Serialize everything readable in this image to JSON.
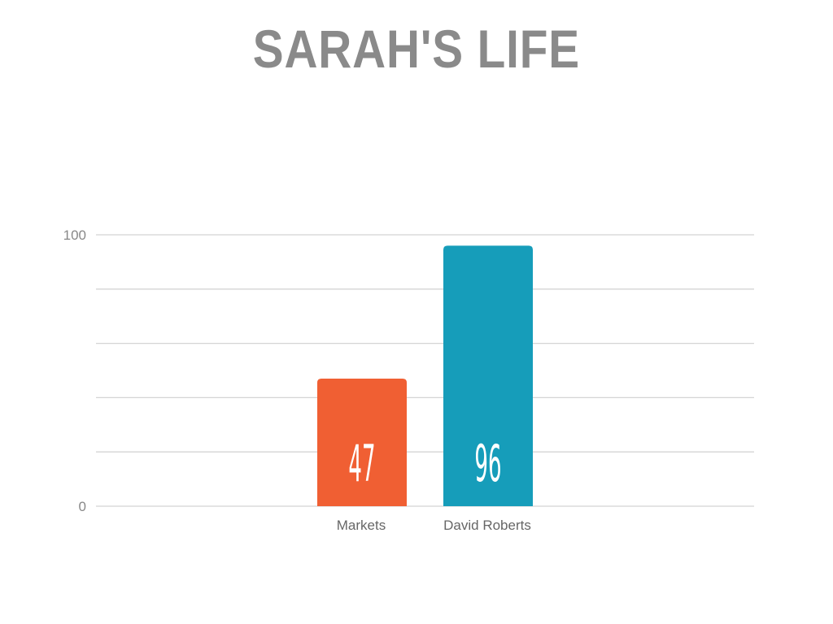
{
  "chart_data": {
    "type": "bar",
    "title": "SARAH'S LIFE",
    "categories": [
      "Markets",
      "David Roberts"
    ],
    "values": [
      47,
      96
    ],
    "colors": [
      "#f05f33",
      "#169dba"
    ],
    "ylim": [
      0,
      100
    ],
    "yticks": [
      "0",
      "100"
    ],
    "gridlines_every": 20,
    "grid": true,
    "data_labels": [
      "47",
      "96"
    ],
    "xlabel": "",
    "ylabel": ""
  }
}
